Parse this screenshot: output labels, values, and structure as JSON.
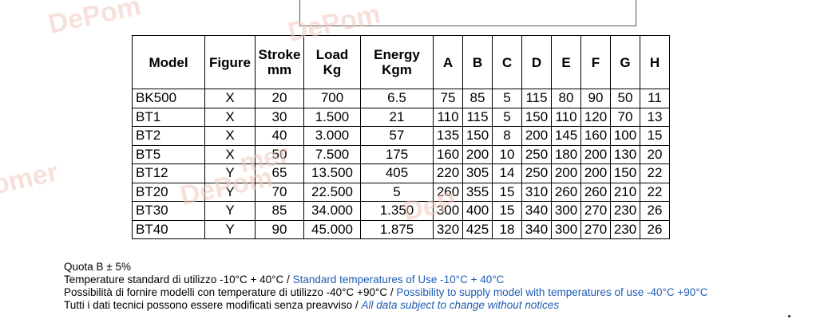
{
  "watermark_text": "DePomeri",
  "table": {
    "headers": [
      [
        "Model"
      ],
      [
        "Figure"
      ],
      [
        "Stroke",
        "mm"
      ],
      [
        "Load",
        "Kg"
      ],
      [
        "Energy",
        "Kgm"
      ],
      [
        "A"
      ],
      [
        "B"
      ],
      [
        "C"
      ],
      [
        "D"
      ],
      [
        "E"
      ],
      [
        "F"
      ],
      [
        "G"
      ],
      [
        "H"
      ]
    ],
    "rows": [
      [
        "BK500",
        "X",
        "20",
        "700",
        "6.5",
        "75",
        "85",
        "5",
        "115",
        "80",
        "90",
        "50",
        "11"
      ],
      [
        "BT1",
        "X",
        "30",
        "1.500",
        "21",
        "110",
        "115",
        "5",
        "150",
        "110",
        "120",
        "70",
        "13"
      ],
      [
        "BT2",
        "X",
        "40",
        "3.000",
        "57",
        "135",
        "150",
        "8",
        "200",
        "145",
        "160",
        "100",
        "15"
      ],
      [
        "BT5",
        "X",
        "50",
        "7.500",
        "175",
        "160",
        "200",
        "10",
        "250",
        "180",
        "200",
        "130",
        "20"
      ],
      [
        "BT12",
        "Y",
        "65",
        "13.500",
        "405",
        "220",
        "305",
        "14",
        "250",
        "200",
        "200",
        "150",
        "22"
      ],
      [
        "BT20",
        "Y",
        "70",
        "22.500",
        "5",
        "260",
        "355",
        "15",
        "310",
        "260",
        "260",
        "210",
        "22"
      ],
      [
        "BT30",
        "Y",
        "85",
        "34.000",
        "1.350",
        "300",
        "400",
        "15",
        "340",
        "300",
        "270",
        "230",
        "26"
      ],
      [
        "BT40",
        "Y",
        "90",
        "45.000",
        "1.875",
        "320",
        "425",
        "18",
        "340",
        "300",
        "270",
        "230",
        "26"
      ]
    ]
  },
  "notes": {
    "quota": "Quota B ± 5%",
    "temp_it": "Temperature standard di utilizzo -10°C + 40°C / ",
    "temp_en": "Standard temperatures of Use -10°C + 40°C",
    "supply_it": "Possibilità di fornire modelli con temperature di utilizzo -40°C +90°C / ",
    "supply_en": "Possibility to supply model with temperatures of use -40°C +90°C",
    "data_it": "Tutti i dati tecnici possono essere modificati senza preavviso / ",
    "data_en": "All data subject to change without notices"
  }
}
